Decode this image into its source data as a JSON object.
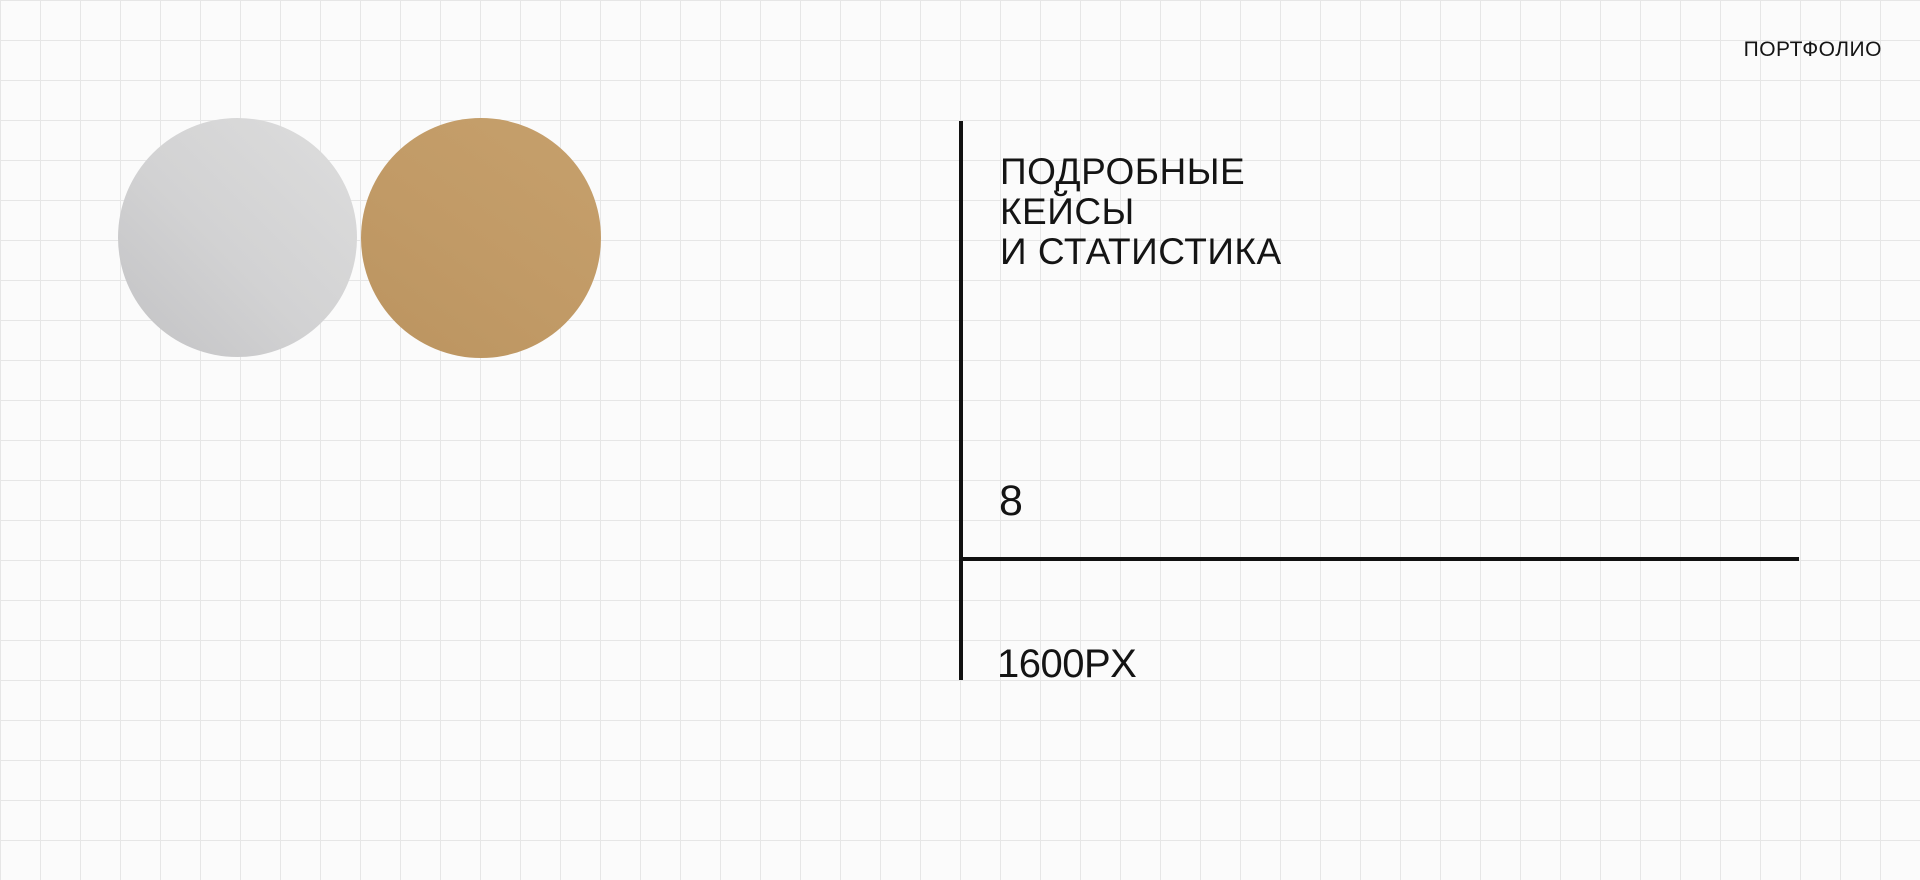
{
  "header": {
    "portfolio_label": "ПОРТФОЛИО"
  },
  "hero": {
    "heading_lines": [
      "ПОДРОБНЫЕ",
      "КЕЙСЫ",
      "И СТАТИСТИКА"
    ],
    "cases_count": "8",
    "width_label": "1600PX"
  },
  "colors": {
    "background": "#fbfbfb",
    "grid_line": "#e6e6e6",
    "text": "#141414",
    "axis_line": "#111111",
    "circle_silver_light": "#dddddd",
    "circle_silver_dark": "#c2c2c4",
    "circle_gold": "#c19a66"
  }
}
